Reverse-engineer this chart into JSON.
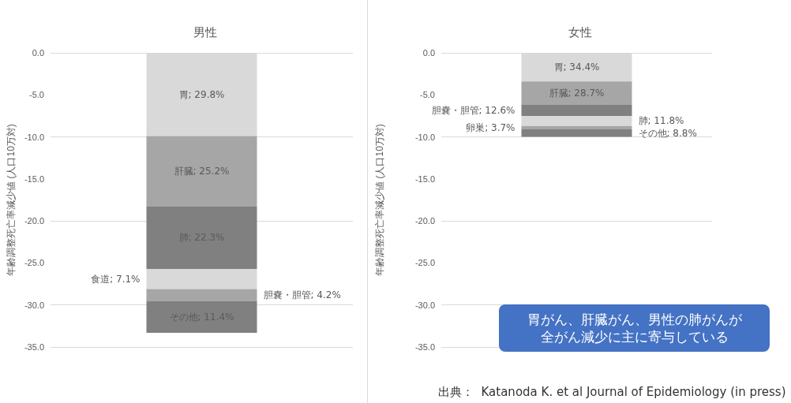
{
  "chart_data": [
    {
      "type": "bar",
      "title": "男性",
      "ylabel": "年齢調整死亡率減少値 (人口10万対)",
      "categories": [
        null
      ],
      "stacked": true,
      "grid": "y",
      "ylim": [
        -35,
        0
      ],
      "yticks": [
        {
          "value": 0,
          "label": "0.0"
        },
        {
          "value": -5,
          "label": "-5.0"
        },
        {
          "value": -10,
          "label": "-10.0"
        },
        {
          "value": -15,
          "label": "-15.0"
        },
        {
          "value": -20,
          "label": "-20.0"
        },
        {
          "value": -25,
          "label": "-25.0"
        },
        {
          "value": -30,
          "label": "-30.0"
        },
        {
          "value": -35,
          "label": "-35.0"
        }
      ],
      "series": [
        {
          "color": "#d9d9d9",
          "values": [
            -9.9
          ]
        },
        {
          "color": "#a6a6a6",
          "values": [
            -8.4
          ]
        },
        {
          "color": "#808080",
          "values": [
            -7.4
          ]
        },
        {
          "color": "#d9d9d9",
          "values": [
            -2.4
          ]
        },
        {
          "color": "#a6a6a6",
          "values": [
            -1.4
          ]
        },
        {
          "color": "#808080",
          "values": [
            -3.8
          ]
        }
      ],
      "annotations": [
        "胃; 29.8%",
        "肝臓; 25.2%",
        "肺; 22.3%",
        "食道; 7.1%",
        "胆嚢・胆管; 4.2%",
        "その他; 11.4%"
      ]
    },
    {
      "type": "bar",
      "title": "女性",
      "ylabel": "年齢調整死亡率減少値 (人口10万対)",
      "categories": [
        null
      ],
      "stacked": true,
      "grid": "y",
      "ylim": [
        -35,
        0
      ],
      "yticks": [
        {
          "value": 0,
          "label": "0.0"
        },
        {
          "value": -5,
          "label": "-5.0"
        },
        {
          "value": -10,
          "label": "-10.0"
        },
        {
          "value": -15,
          "label": "-15.0"
        },
        {
          "value": -20,
          "label": "-20.0"
        },
        {
          "value": -25,
          "label": "-25.0"
        },
        {
          "value": -30,
          "label": "-30.0"
        },
        {
          "value": -35,
          "label": "-35.0"
        }
      ],
      "series": [
        {
          "color": "#d9d9d9",
          "values": [
            -3.4
          ]
        },
        {
          "color": "#a6a6a6",
          "values": [
            -2.8
          ]
        },
        {
          "color": "#808080",
          "values": [
            -1.3
          ]
        },
        {
          "color": "#d9d9d9",
          "values": [
            -1.2
          ]
        },
        {
          "color": "#a6a6a6",
          "values": [
            -0.4
          ]
        },
        {
          "color": "#808080",
          "values": [
            -0.9
          ]
        }
      ],
      "annotations": [
        "胃; 34.4%",
        "肝臓; 28.7%",
        "胆嚢・胆管; 12.6%",
        "肺; 11.8%",
        "卵巣; 3.7%",
        "その他; 8.8%",
        "胃がん、肝臓がん、男性の肺がんが全がん減少に主に寄与している",
        "出典：  Katanoda K. et al Journal of Epidemiology (in press)"
      ]
    }
  ]
}
